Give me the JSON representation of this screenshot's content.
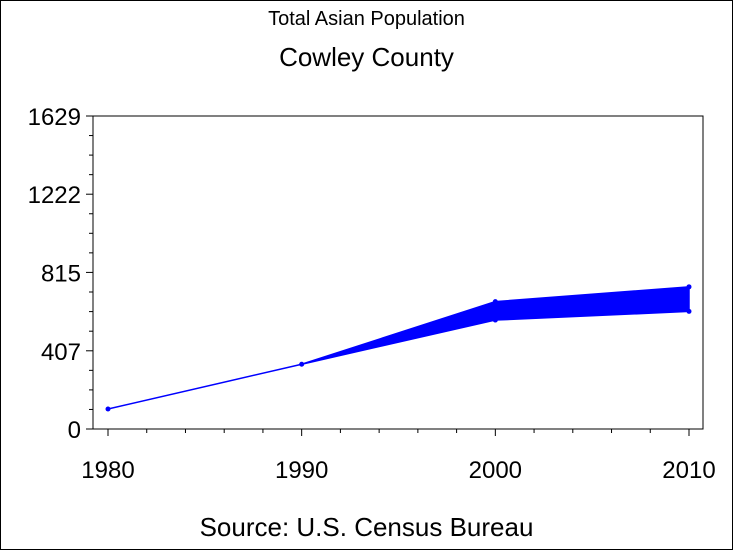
{
  "chart_data": {
    "type": "area",
    "title": "Total Asian Population",
    "subtitle": "Cowley County",
    "footnote": "Source: U.S. Census Bureau",
    "x_ticks": [
      "1980",
      "1990",
      "2000",
      "2010"
    ],
    "y_ticks": [
      "0",
      "407",
      "815",
      "1222",
      "1629"
    ],
    "ylim": [
      0,
      1629
    ],
    "series": [
      {
        "values": [
          {
            "x": 1980,
            "low": 104,
            "high": 104
          },
          {
            "x": 1990,
            "low": 337,
            "high": 337
          },
          {
            "x": 2000,
            "low": 567,
            "high": 663
          },
          {
            "x": 2010,
            "low": 612,
            "high": 740
          }
        ]
      }
    ],
    "color": "#0000ff"
  }
}
